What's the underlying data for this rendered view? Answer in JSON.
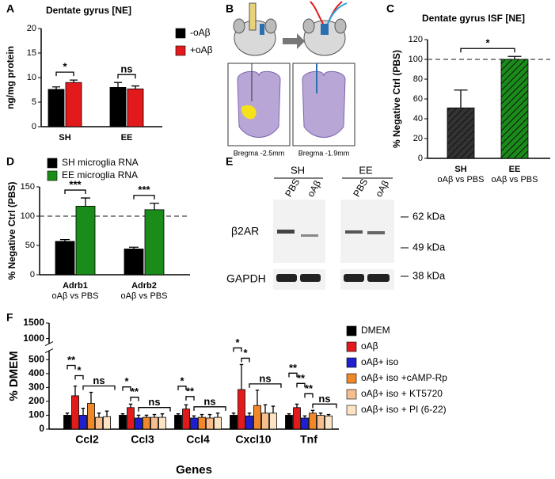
{
  "chart_data": [
    {
      "label": "A",
      "type": "bar",
      "title": "Dentate gyrus [NE]",
      "y_label": "ng/mg protein",
      "categories": [
        "SH",
        "EE"
      ],
      "series": [
        {
          "name": "-oAβ",
          "color": "#000000",
          "values": [
            7.6,
            8.0
          ],
          "errors": [
            0.5,
            1.0
          ]
        },
        {
          "name": "+oAβ",
          "color": "#e31a1c",
          "values": [
            9.0,
            7.7
          ],
          "errors": [
            0.5,
            0.6
          ]
        }
      ],
      "ylim": [
        0,
        20
      ],
      "yticks": [
        0,
        5,
        10,
        15,
        20
      ],
      "annotations": [
        "*",
        "ns"
      ]
    },
    {
      "label": "C",
      "type": "bar",
      "title": "Dentate gyrus ISF [NE]",
      "y_label": "% Negative Ctrl (PBS)",
      "categories": [
        "SH",
        "EE"
      ],
      "subcategories": [
        "oAβ vs PBS",
        "oAβ vs PBS"
      ],
      "values": [
        51,
        100
      ],
      "errors": [
        18,
        3
      ],
      "colors": [
        "#333333",
        "#1a8c1a"
      ],
      "hatch": true,
      "ylim": [
        0,
        120
      ],
      "yticks": [
        0,
        20,
        40,
        60,
        80,
        100,
        120
      ],
      "reference_line": 100,
      "annotations": [
        "*"
      ]
    },
    {
      "label": "D",
      "type": "bar",
      "y_label": "% Negative Ctrl (PBS)",
      "categories": [
        "Adrb1",
        "Adrb2"
      ],
      "subcategories": [
        "oAβ vs PBS",
        "oAβ vs PBS"
      ],
      "series": [
        {
          "name": "SH microglia RNA",
          "color": "#000000",
          "values": [
            57,
            44
          ],
          "errors": [
            3,
            3
          ]
        },
        {
          "name": "EE microglia RNA",
          "color": "#1a8c1a",
          "values": [
            117,
            111
          ],
          "errors": [
            14,
            11
          ]
        }
      ],
      "ylim": [
        0,
        150
      ],
      "yticks": [
        0,
        50,
        100,
        150
      ],
      "reference_line": 100,
      "annotations": [
        "***",
        "***"
      ]
    },
    {
      "label": "F",
      "type": "bar",
      "y_label": "% DMEM",
      "x_label": "Genes",
      "categories": [
        "Ccl2",
        "Ccl3",
        "Ccl4",
        "Cxcl10",
        "Tnf"
      ],
      "series": [
        {
          "name": "DMEM",
          "color": "#000000",
          "values": [
            100,
            100,
            100,
            100,
            100
          ],
          "errors": [
            15,
            10,
            10,
            15,
            10
          ]
        },
        {
          "name": "oAβ",
          "color": "#e31a1c",
          "values": [
            240,
            155,
            145,
            285,
            155
          ],
          "errors": [
            70,
            25,
            30,
            180,
            25
          ]
        },
        {
          "name": "oAβ+ iso",
          "color": "#1f1fd0",
          "values": [
            100,
            80,
            80,
            95,
            80
          ],
          "errors": [
            50,
            20,
            15,
            20,
            15
          ]
        },
        {
          "name": "oAβ+ iso +cAMP-Rp",
          "color": "#f0882a",
          "values": [
            185,
            85,
            85,
            170,
            115
          ],
          "errors": [
            80,
            15,
            20,
            110,
            20
          ]
        },
        {
          "name": "oAβ+ iso + KT5720",
          "color": "#f6be8c",
          "values": [
            85,
            85,
            80,
            115,
            100
          ],
          "errors": [
            30,
            20,
            25,
            60,
            15
          ]
        },
        {
          "name": "oAβ+ iso + PI (6-22)",
          "color": "#fbe3c4",
          "values": [
            90,
            85,
            85,
            115,
            95
          ],
          "errors": [
            40,
            25,
            30,
            50,
            10
          ]
        }
      ],
      "ylim": [
        0,
        1500
      ],
      "yticks": [
        0,
        100,
        200,
        300,
        400,
        500,
        1000,
        1500
      ],
      "axis_break": [
        550,
        900
      ],
      "annotations": [
        [
          "**",
          "*",
          "ns"
        ],
        [
          "*",
          "**",
          "ns"
        ],
        [
          "*",
          "**",
          "ns"
        ],
        [
          "*",
          "*",
          "ns"
        ],
        [
          "**",
          "**",
          "**",
          "ns"
        ]
      ]
    }
  ],
  "panel_b": {
    "label": "B",
    "captions": [
      "Bregma -2.5mm",
      "Bregma -1.9mm"
    ]
  },
  "panel_e": {
    "label": "E",
    "groups": [
      "SH",
      "EE"
    ],
    "lanes": [
      "PBS",
      "oAβ",
      "PBS",
      "oAβ"
    ],
    "rows": [
      "β2AR",
      "GAPDH"
    ],
    "markers": [
      "62 kDa",
      "49 kDa",
      "38 kDa"
    ]
  }
}
